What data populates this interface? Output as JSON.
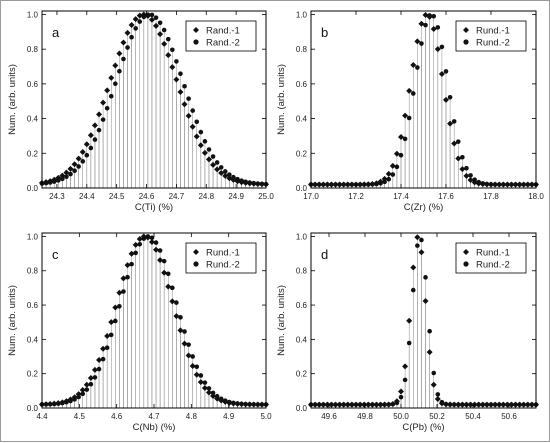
{
  "chart_data": [
    {
      "type": "scatter",
      "panel_label": "a",
      "xlabel": "C(Ti) (%)",
      "ylabel": "Num. (arb. units)",
      "xlim": [
        24.25,
        25.0
      ],
      "ylim": [
        0.0,
        1.02
      ],
      "xticks": [
        "24.3",
        "24.4",
        "24.5",
        "24.6",
        "24.7",
        "24.8",
        "24.9",
        "25.0"
      ],
      "yticks": [
        "0.0",
        "0.2",
        "0.4",
        "0.6",
        "0.8",
        "1.0"
      ],
      "grid": false,
      "legend_position": "top-right",
      "series": [
        {
          "name": "Rand.-1",
          "marker": "diamond",
          "center": 24.59,
          "sigma": 0.112,
          "baseline": 0.02
        },
        {
          "name": "Rand.-2",
          "marker": "circle",
          "center": 24.61,
          "sigma": 0.112,
          "baseline": 0.02
        }
      ]
    },
    {
      "type": "scatter",
      "panel_label": "b",
      "xlabel": "C(Zr) (%)",
      "ylabel": "Num. (arb. units)",
      "xlim": [
        17.0,
        18.0
      ],
      "ylim": [
        0.0,
        1.02
      ],
      "xticks": [
        "17.0",
        "17.2",
        "17.4",
        "17.6",
        "17.8",
        "18.0"
      ],
      "yticks": [
        "0.0",
        "0.2",
        "0.4",
        "0.6",
        "0.8",
        "1.0"
      ],
      "grid": false,
      "legend_position": "top-right",
      "series": [
        {
          "name": "Rund.-1",
          "marker": "diamond",
          "center": 17.515,
          "sigma": 0.072,
          "baseline": 0.02
        },
        {
          "name": "Rund.-2",
          "marker": "circle",
          "center": 17.535,
          "sigma": 0.072,
          "baseline": 0.02
        }
      ]
    },
    {
      "type": "scatter",
      "panel_label": "c",
      "xlabel": "C(Nb) (%)",
      "ylabel": "Num. (arb. units)",
      "xlim": [
        4.4,
        5.0
      ],
      "ylim": [
        0.0,
        1.02
      ],
      "xticks": [
        "4.4",
        "4.5",
        "4.6",
        "4.7",
        "4.8",
        "4.9",
        "5.0"
      ],
      "yticks": [
        "0.0",
        "0.2",
        "0.4",
        "0.6",
        "0.8",
        "1.0"
      ],
      "grid": false,
      "legend_position": "top-right",
      "series": [
        {
          "name": "Rund.-1",
          "marker": "diamond",
          "center": 4.675,
          "sigma": 0.075,
          "baseline": 0.02
        },
        {
          "name": "Rund.-2",
          "marker": "circle",
          "center": 4.685,
          "sigma": 0.075,
          "baseline": 0.02
        }
      ]
    },
    {
      "type": "scatter",
      "panel_label": "d",
      "xlabel": "C(Pb) (%)",
      "ylabel": "Num. (arb. units)",
      "xlim": [
        49.5,
        50.75
      ],
      "ylim": [
        0.0,
        1.02
      ],
      "xticks": [
        "49.6",
        "49.8",
        "50.0",
        "50.2",
        "50.4",
        "50.6"
      ],
      "yticks": [
        "0.0",
        "0.2",
        "0.4",
        "0.6",
        "0.8",
        "1.0"
      ],
      "grid": false,
      "legend_position": "top-right",
      "series": [
        {
          "name": "Rund.-1",
          "marker": "diamond",
          "center": 50.095,
          "sigma": 0.042,
          "baseline": 0.02
        },
        {
          "name": "Rund.-2",
          "marker": "circle",
          "center": 50.105,
          "sigma": 0.042,
          "baseline": 0.02
        }
      ]
    }
  ]
}
